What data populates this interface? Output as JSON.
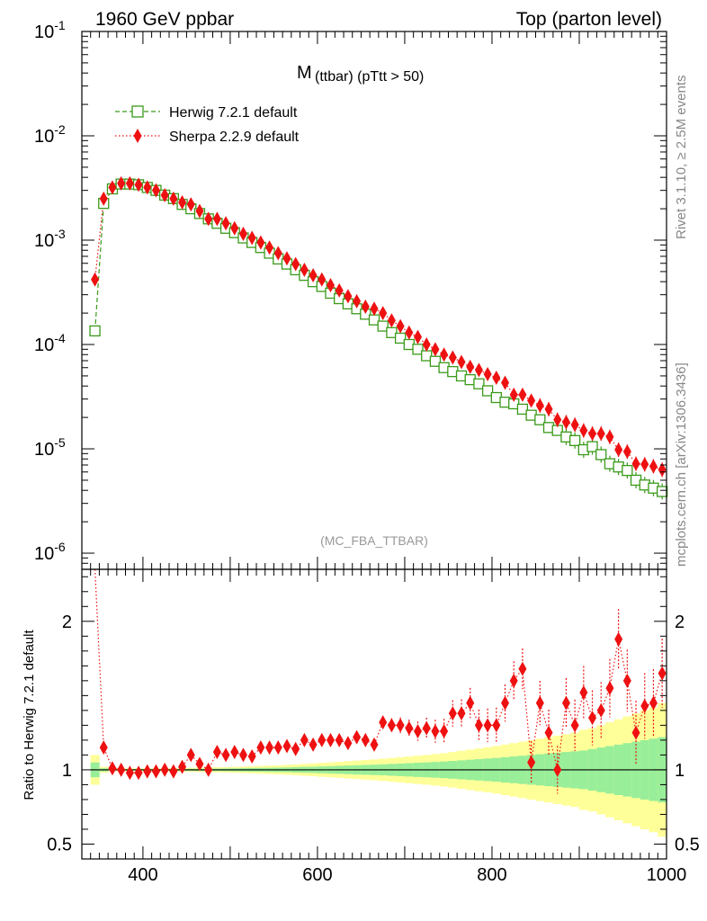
{
  "header": {
    "left": "1960 GeV ppbar",
    "right": "Top (parton level)"
  },
  "side": {
    "rivet": "Rivet 3.1.10, ≥ 2.5M events",
    "mcplots": "mcplots.cern.ch [arXiv:1306.3436]"
  },
  "main": {
    "title_main": "M",
    "title_sub": "(ttbar) (pTtt > 50)",
    "analysis_tag": "(MC_FBA_TTBAR)"
  },
  "ratio": {
    "ylabel": "Ratio to Herwig 7.2.1 default"
  },
  "colors": {
    "herwig": "#3a9a1a",
    "sherpa": "#ee1111",
    "band_inner": "#99ee99",
    "band_outer": "#ffff99"
  },
  "chart_data": [
    {
      "type": "line",
      "panel": "main",
      "yscale": "log",
      "xlim": [
        330,
        1000
      ],
      "ylim": [
        7e-07,
        0.1
      ],
      "yticks": [
        {
          "exp": "-1",
          "value": 0.1
        },
        {
          "exp": "-2",
          "value": 0.01
        },
        {
          "exp": "-3",
          "value": 0.001
        },
        {
          "exp": "-4",
          "value": 0.0001
        },
        {
          "exp": "-5",
          "value": 1e-05
        },
        {
          "exp": "-6",
          "value": 1e-06
        }
      ],
      "ytick_base": "10",
      "legend_position": "top-left",
      "series": [
        {
          "name": "Herwig 7.2.1 default",
          "marker": "open-square",
          "line": "dashed",
          "x": [
            345,
            355,
            365,
            375,
            385,
            395,
            405,
            415,
            425,
            435,
            445,
            455,
            465,
            475,
            485,
            495,
            505,
            515,
            525,
            535,
            545,
            555,
            565,
            575,
            585,
            595,
            605,
            615,
            625,
            635,
            645,
            655,
            665,
            675,
            685,
            695,
            705,
            715,
            725,
            735,
            745,
            755,
            765,
            775,
            785,
            795,
            805,
            815,
            825,
            835,
            845,
            855,
            865,
            875,
            885,
            895,
            905,
            915,
            925,
            935,
            945,
            955,
            965,
            975,
            985,
            995
          ],
          "y": [
            0.000135,
            0.00225,
            0.0031,
            0.00345,
            0.00345,
            0.0034,
            0.0032,
            0.003,
            0.0027,
            0.0025,
            0.0022,
            0.002,
            0.0018,
            0.0016,
            0.00145,
            0.0013,
            0.00118,
            0.00105,
            0.00095,
            0.00085,
            0.00075,
            0.00066,
            0.00059,
            0.00052,
            0.00046,
            0.0004,
            0.00036,
            0.00031,
            0.000275,
            0.000245,
            0.00022,
            0.000195,
            0.000172,
            0.00015,
            0.00013,
            0.000115,
            0.0001,
            9e-05,
            7.8e-05,
            6.9e-05,
            6e-05,
            5.5e-05,
            5e-05,
            4.6e-05,
            4.2e-05,
            3.6e-05,
            3.1e-05,
            2.8e-05,
            2.7e-05,
            2.4e-05,
            2.1e-05,
            1.9e-05,
            1.6e-05,
            1.5e-05,
            1.3e-05,
            1.2e-05,
            9.8e-06,
            1.05e-05,
            8.8e-06,
            7.2e-06,
            6.7e-06,
            6.2e-06,
            5e-06,
            4.5e-06,
            4.2e-06,
            3.9e-06
          ]
        },
        {
          "name": "Sherpa 2.2.9 default",
          "marker": "filled-diamond",
          "line": "dotted",
          "x": [
            345,
            355,
            365,
            375,
            385,
            395,
            405,
            415,
            425,
            435,
            445,
            455,
            465,
            475,
            485,
            495,
            505,
            515,
            525,
            535,
            545,
            555,
            565,
            575,
            585,
            595,
            605,
            615,
            625,
            635,
            645,
            655,
            665,
            675,
            685,
            695,
            705,
            715,
            725,
            735,
            745,
            755,
            765,
            775,
            785,
            795,
            805,
            815,
            825,
            835,
            845,
            855,
            865,
            875,
            885,
            895,
            905,
            915,
            925,
            935,
            945,
            955,
            965,
            975,
            985,
            995
          ],
          "y": [
            0.00042,
            0.0025,
            0.0032,
            0.0035,
            0.0035,
            0.0034,
            0.0032,
            0.003,
            0.0027,
            0.0025,
            0.0023,
            0.0022,
            0.0019,
            0.0016,
            0.0016,
            0.00145,
            0.0013,
            0.00115,
            0.00105,
            0.00095,
            0.00085,
            0.00075,
            0.00067,
            0.00059,
            0.00052,
            0.00046,
            0.00042,
            0.00037,
            0.00033,
            0.00029,
            0.00026,
            0.00023,
            0.00022,
            0.0002,
            0.00017,
            0.00015,
            0.00013,
            0.000118,
            0.0001,
            9e-05,
            8e-05,
            7.5e-05,
            6.8e-05,
            6.1e-05,
            5.7e-05,
            5.2e-05,
            4.8e-05,
            4.3e-05,
            3.3e-05,
            3.3e-05,
            2.9e-05,
            2.6e-05,
            2.4e-05,
            1.9e-05,
            1.8e-05,
            1.7e-05,
            1.5e-05,
            1.4e-05,
            1.4e-05,
            1.3e-05,
            9.8e-06,
            9.4e-06,
            7.2e-06,
            7.1e-06,
            6.8e-06,
            6.3e-06
          ]
        }
      ]
    },
    {
      "type": "line",
      "panel": "ratio",
      "xlim": [
        330,
        1000
      ],
      "ylim": [
        0.4,
        2.35
      ],
      "xticks": [
        400,
        600,
        800,
        1000
      ],
      "yticks": [
        {
          "label": "0.5",
          "value": 0.5
        },
        {
          "label": "1",
          "value": 1
        },
        {
          "label": "2",
          "value": 2
        }
      ],
      "series": [
        {
          "name": "Sherpa 2.2.9 default",
          "x": [
            355,
            365,
            375,
            385,
            395,
            405,
            415,
            425,
            435,
            445,
            455,
            465,
            475,
            485,
            495,
            505,
            515,
            525,
            535,
            545,
            555,
            565,
            575,
            585,
            595,
            605,
            615,
            625,
            635,
            645,
            655,
            665,
            675,
            685,
            695,
            705,
            715,
            725,
            735,
            745,
            755,
            765,
            775,
            785,
            795,
            805,
            815,
            825,
            835,
            845,
            855,
            865,
            875,
            885,
            895,
            905,
            915,
            925,
            935,
            945,
            955,
            965,
            975,
            985,
            995
          ],
          "y": [
            1.15,
            1.01,
            1.0,
            0.98,
            0.98,
            0.99,
            0.99,
            1.0,
            0.99,
            1.02,
            1.1,
            1.04,
            1.0,
            1.12,
            1.1,
            1.12,
            1.1,
            1.09,
            1.15,
            1.15,
            1.15,
            1.16,
            1.14,
            1.2,
            1.17,
            1.2,
            1.2,
            1.2,
            1.18,
            1.22,
            1.2,
            1.17,
            1.32,
            1.3,
            1.3,
            1.28,
            1.26,
            1.28,
            1.26,
            1.26,
            1.38,
            1.38,
            1.45,
            1.3,
            1.3,
            1.3,
            1.45,
            1.6,
            1.68,
            1.05,
            1.45,
            1.25,
            1.0,
            1.45,
            1.3,
            1.52,
            1.35,
            1.4,
            1.55,
            1.88,
            1.6,
            1.25,
            1.43,
            1.45,
            1.65
          ]
        }
      ],
      "start_point": {
        "x": 345,
        "y": 3.2
      },
      "band": {
        "x": [
          345,
          355,
          365,
          375,
          385,
          395,
          405,
          415,
          425,
          435,
          445,
          455,
          465,
          475,
          485,
          495,
          505,
          515,
          525,
          535,
          545,
          555,
          565,
          575,
          585,
          595,
          605,
          615,
          625,
          635,
          645,
          655,
          665,
          675,
          685,
          695,
          705,
          715,
          725,
          735,
          745,
          755,
          765,
          775,
          785,
          795,
          805,
          815,
          825,
          835,
          845,
          855,
          865,
          875,
          885,
          895,
          905,
          915,
          925,
          935,
          945,
          955,
          965,
          975,
          985,
          995
        ],
        "inner_half": [
          0.05,
          0.01,
          0.005,
          0.005,
          0.005,
          0.005,
          0.005,
          0.005,
          0.005,
          0.006,
          0.006,
          0.007,
          0.007,
          0.008,
          0.008,
          0.009,
          0.01,
          0.011,
          0.012,
          0.013,
          0.014,
          0.015,
          0.016,
          0.018,
          0.02,
          0.021,
          0.023,
          0.025,
          0.027,
          0.029,
          0.031,
          0.033,
          0.035,
          0.037,
          0.04,
          0.042,
          0.045,
          0.048,
          0.05,
          0.053,
          0.056,
          0.06,
          0.064,
          0.068,
          0.072,
          0.076,
          0.08,
          0.085,
          0.09,
          0.095,
          0.1,
          0.105,
          0.11,
          0.115,
          0.12,
          0.125,
          0.13,
          0.14,
          0.15,
          0.16,
          0.17,
          0.18,
          0.19,
          0.2,
          0.21,
          0.22
        ],
        "outer_half": [
          0.1,
          0.02,
          0.01,
          0.01,
          0.01,
          0.01,
          0.01,
          0.01,
          0.01,
          0.012,
          0.012,
          0.014,
          0.015,
          0.016,
          0.017,
          0.018,
          0.02,
          0.022,
          0.024,
          0.026,
          0.028,
          0.03,
          0.033,
          0.036,
          0.04,
          0.043,
          0.047,
          0.05,
          0.054,
          0.058,
          0.062,
          0.066,
          0.07,
          0.075,
          0.08,
          0.085,
          0.09,
          0.095,
          0.1,
          0.106,
          0.112,
          0.12,
          0.128,
          0.136,
          0.144,
          0.152,
          0.16,
          0.17,
          0.18,
          0.19,
          0.2,
          0.21,
          0.22,
          0.23,
          0.24,
          0.25,
          0.27,
          0.28,
          0.3,
          0.32,
          0.34,
          0.36,
          0.38,
          0.4,
          0.42,
          0.45
        ]
      }
    }
  ]
}
